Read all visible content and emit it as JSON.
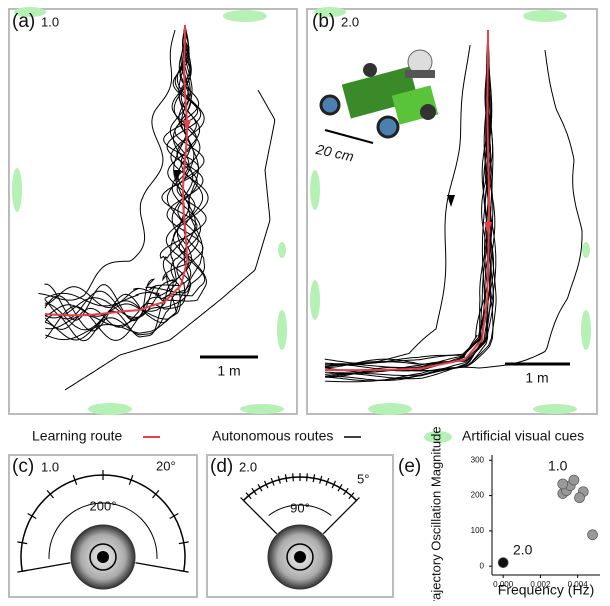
{
  "panel_a": {
    "label": "(a)",
    "gain": "1.0",
    "scale": "1 m"
  },
  "panel_b": {
    "label": "(b)",
    "gain": "2.0",
    "robot_scale": "20 cm",
    "scale": "1 m"
  },
  "legend": {
    "learning": "Learning route",
    "autonomous": "Autonomous routes",
    "cues": "Artificial visual cues"
  },
  "panel_c": {
    "label": "(c)",
    "gain": "1.0",
    "step": "20°",
    "span": "200°"
  },
  "panel_d": {
    "label": "(d)",
    "gain": "2.0",
    "step": "5°",
    "span": "90°"
  },
  "panel_e": {
    "label": "(e)"
  },
  "chart_data": {
    "type": "scatter",
    "y_label": "Trajectory Oscillation Magnitude",
    "x_label": "Frequency (Hz)",
    "x": [
      0.0,
      0.0032,
      0.0034,
      0.0036,
      0.0032,
      0.0038,
      0.0043,
      0.0041,
      0.0048
    ],
    "values": [
      10,
      206,
      214,
      228,
      233,
      244,
      211,
      194,
      89
    ],
    "colors": [
      "#111111",
      "#999999",
      "#999999",
      "#999999",
      "#999999",
      "#999999",
      "#999999",
      "#999999",
      "#999999"
    ],
    "annotations": [
      "1.0",
      "2.0"
    ],
    "xlim": [
      -0.0006,
      0.0052
    ],
    "ylim": [
      -25,
      315
    ],
    "xticks": [
      {
        "value": 0,
        "label": "0.000"
      },
      {
        "value": 0.002,
        "label": "0.002"
      },
      {
        "value": 0.004,
        "label": "0.004"
      }
    ],
    "yticks": [
      0,
      100,
      200,
      300
    ]
  }
}
